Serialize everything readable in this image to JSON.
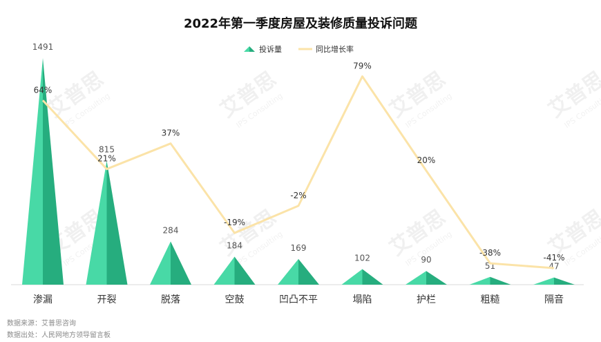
{
  "chart_data": {
    "type": "bar",
    "title": "2022年第一季度房屋及装修质量投诉问题",
    "categories": [
      "渗漏",
      "开裂",
      "脱落",
      "空鼓",
      "凹凸不平",
      "塌陷",
      "护栏",
      "粗糙",
      "隔音"
    ],
    "series": [
      {
        "name": "投诉量",
        "type": "bar",
        "values": [
          1491,
          815,
          284,
          184,
          169,
          102,
          90,
          51,
          47
        ],
        "labels": [
          "1491",
          "815",
          "284",
          "184",
          "169",
          "102",
          "90",
          "51",
          "47"
        ]
      },
      {
        "name": "同比增长率",
        "type": "line",
        "values": [
          64,
          21,
          37,
          -19,
          -2,
          79,
          20,
          -38,
          -41
        ],
        "labels": [
          "64%",
          "21%",
          "37%",
          "-19%",
          "-2%",
          "79%",
          "20%",
          "-38%",
          "-41%"
        ]
      }
    ],
    "y_left_range": [
      0,
      1500
    ],
    "y_right_range": [
      -60,
      100
    ],
    "grid": false,
    "legend_position": "top-center",
    "colors": {
      "bar_light": "#48d9a6",
      "bar_dark": "#26ad7e",
      "line": "#fbe3a8",
      "axis": "#d8d8d8",
      "label": "#555555"
    }
  },
  "notes": {
    "source": "数据来源：艾普思咨询",
    "origin": "数据出处：人民网地方领导留言板"
  },
  "watermark": {
    "text": "艾普思",
    "subtext": "IPS Consulting"
  }
}
